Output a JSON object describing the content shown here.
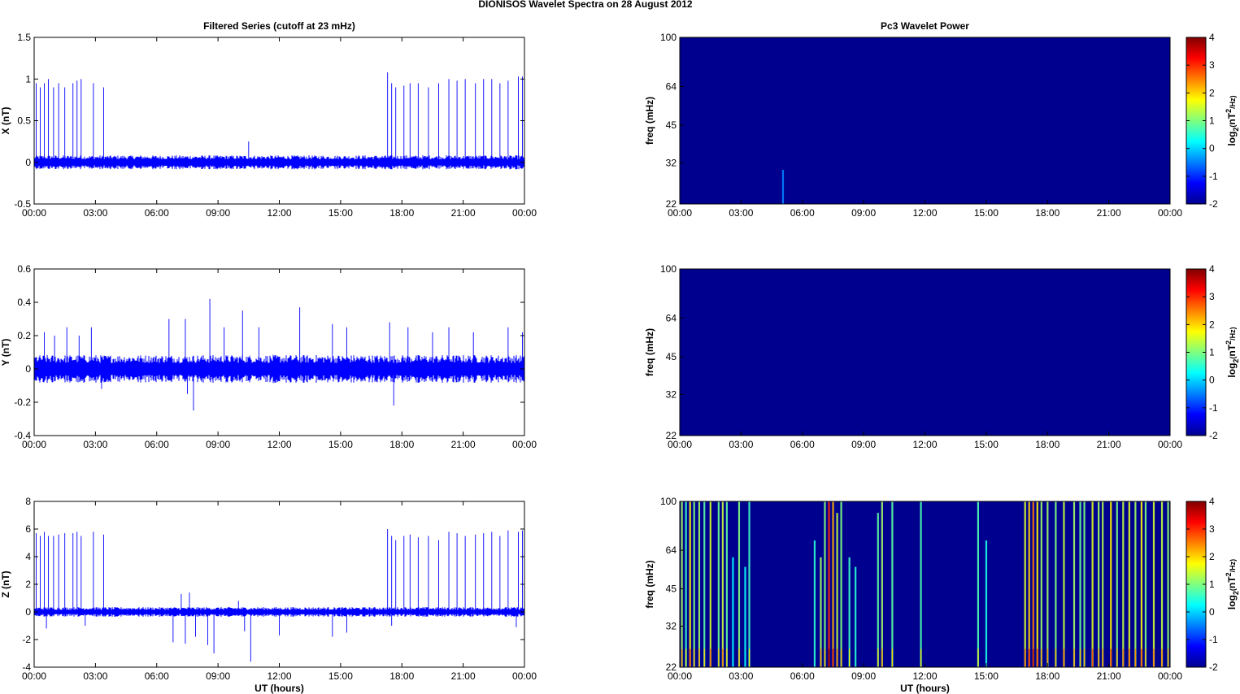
{
  "figure": {
    "title": "DIONISOS Wavelet Spectra on 28 August    2012"
  },
  "colors": {
    "trace": "#0000ff",
    "spectrogram_background": "#00008f"
  },
  "chart_data": [
    {
      "type": "line",
      "panel": "X",
      "title": "Filtered Series (cutoff at 23 mHz)",
      "ylabel": "X (nT)",
      "xlabel": "",
      "ylim": [
        -0.5,
        1.5
      ],
      "yticks": [
        -0.5,
        0,
        0.5,
        1,
        1.5
      ],
      "ytick_labels": [
        "-0.5",
        "0",
        "0.5",
        "1",
        "1.5"
      ],
      "xlim_hours": [
        0,
        24
      ],
      "xtick_labels": [
        "00:00",
        "03:00",
        "06:00",
        "09:00",
        "12:00",
        "15:00",
        "18:00",
        "21:00",
        "00:00"
      ],
      "noise_amplitude": 0.06,
      "spikes": [
        [
          0.1,
          0.95
        ],
        [
          0.3,
          0.9
        ],
        [
          0.5,
          0.95
        ],
        [
          0.7,
          1.0
        ],
        [
          0.95,
          0.9
        ],
        [
          1.2,
          0.95
        ],
        [
          1.5,
          0.9
        ],
        [
          1.9,
          0.95
        ],
        [
          2.1,
          0.98
        ],
        [
          2.3,
          1.0
        ],
        [
          2.9,
          0.95
        ],
        [
          3.4,
          0.9
        ],
        [
          10.5,
          0.25
        ],
        [
          17.3,
          1.08
        ],
        [
          17.5,
          0.95
        ],
        [
          17.7,
          0.9
        ],
        [
          18.1,
          0.92
        ],
        [
          18.4,
          0.95
        ],
        [
          18.8,
          0.95
        ],
        [
          19.3,
          0.9
        ],
        [
          19.8,
          0.95
        ],
        [
          20.3,
          1.0
        ],
        [
          20.7,
          0.98
        ],
        [
          21.1,
          1.0
        ],
        [
          21.6,
          0.95
        ],
        [
          22.0,
          1.0
        ],
        [
          22.4,
          1.0
        ],
        [
          22.8,
          0.95
        ],
        [
          23.2,
          0.98
        ],
        [
          23.7,
          1.03
        ],
        [
          23.9,
          1.03
        ]
      ]
    },
    {
      "type": "line",
      "panel": "Y",
      "title": "",
      "ylabel": "Y (nT)",
      "xlabel": "",
      "ylim": [
        -0.4,
        0.6
      ],
      "yticks": [
        -0.4,
        -0.2,
        0,
        0.2,
        0.4,
        0.6
      ],
      "ytick_labels": [
        "-0.4",
        "-0.2",
        "0",
        "0.2",
        "0.4",
        "0.6"
      ],
      "xlim_hours": [
        0,
        24
      ],
      "xtick_labels": [
        "00:00",
        "03:00",
        "06:00",
        "09:00",
        "12:00",
        "15:00",
        "18:00",
        "21:00",
        "00:00"
      ],
      "noise_amplitude": 0.06,
      "spikes": [
        [
          0.5,
          0.22
        ],
        [
          1.0,
          0.2
        ],
        [
          1.6,
          0.25
        ],
        [
          2.2,
          0.2
        ],
        [
          2.8,
          0.25
        ],
        [
          6.6,
          0.3
        ],
        [
          7.4,
          0.3
        ],
        [
          7.8,
          -0.25
        ],
        [
          8.6,
          0.42
        ],
        [
          9.3,
          0.25
        ],
        [
          10.2,
          0.35
        ],
        [
          11.0,
          0.25
        ],
        [
          13.0,
          0.37
        ],
        [
          14.6,
          0.27
        ],
        [
          15.3,
          0.25
        ],
        [
          17.4,
          0.28
        ],
        [
          17.6,
          -0.22
        ],
        [
          18.3,
          0.25
        ],
        [
          19.5,
          0.22
        ],
        [
          20.3,
          0.25
        ],
        [
          21.5,
          0.22
        ],
        [
          23.2,
          0.25
        ],
        [
          23.9,
          0.22
        ],
        [
          3.3,
          -0.12
        ],
        [
          7.5,
          -0.15
        ]
      ]
    },
    {
      "type": "line",
      "panel": "Z",
      "title": "",
      "ylabel": "Z (nT)",
      "xlabel": "UT (hours)",
      "ylim": [
        -4,
        8
      ],
      "yticks": [
        -4,
        -2,
        0,
        2,
        4,
        6,
        8
      ],
      "ytick_labels": [
        "-4",
        "-2",
        "0",
        "2",
        "4",
        "6",
        "8"
      ],
      "xlim_hours": [
        0,
        24
      ],
      "xtick_labels": [
        "00:00",
        "03:00",
        "06:00",
        "09:00",
        "12:00",
        "15:00",
        "18:00",
        "21:00",
        "00:00"
      ],
      "noise_amplitude": 0.25,
      "spikes": [
        [
          0.1,
          5.7
        ],
        [
          0.3,
          5.5
        ],
        [
          0.5,
          5.8
        ],
        [
          0.7,
          5.5
        ],
        [
          0.95,
          5.5
        ],
        [
          1.2,
          5.6
        ],
        [
          1.5,
          5.7
        ],
        [
          1.9,
          5.7
        ],
        [
          2.1,
          5.8
        ],
        [
          2.3,
          5.5
        ],
        [
          2.9,
          5.8
        ],
        [
          3.4,
          5.6
        ],
        [
          0.6,
          -1.2
        ],
        [
          2.5,
          -1.0
        ],
        [
          6.8,
          -2.2
        ],
        [
          7.2,
          1.3
        ],
        [
          7.4,
          -2.3
        ],
        [
          7.6,
          1.4
        ],
        [
          7.9,
          -1.8
        ],
        [
          8.5,
          -2.4
        ],
        [
          8.8,
          -3.0
        ],
        [
          10.0,
          0.8
        ],
        [
          10.3,
          -1.4
        ],
        [
          10.6,
          -3.6
        ],
        [
          12.0,
          -1.7
        ],
        [
          14.6,
          -1.8
        ],
        [
          15.3,
          -1.5
        ],
        [
          17.3,
          6.0
        ],
        [
          17.5,
          5.5
        ],
        [
          17.7,
          5.2
        ],
        [
          18.1,
          5.5
        ],
        [
          18.4,
          5.6
        ],
        [
          18.8,
          5.4
        ],
        [
          19.3,
          5.5
        ],
        [
          19.8,
          5.2
        ],
        [
          20.3,
          5.8
        ],
        [
          20.7,
          5.7
        ],
        [
          21.1,
          5.5
        ],
        [
          21.6,
          5.6
        ],
        [
          22.0,
          5.7
        ],
        [
          22.4,
          5.8
        ],
        [
          22.8,
          5.5
        ],
        [
          23.2,
          5.9
        ],
        [
          23.7,
          5.8
        ],
        [
          23.9,
          5.9
        ],
        [
          17.5,
          -1.0
        ],
        [
          23.6,
          -1.1
        ]
      ]
    },
    {
      "type": "heatmap",
      "panel": "X",
      "title": "Pc3 Wavelet Power",
      "ylabel": "freq (mHz)",
      "xlabel": "",
      "colorbar_label": "log2(nT2/Hz)",
      "colorbar_ticks": [
        -2,
        -1,
        0,
        1,
        2,
        3,
        4
      ],
      "clim": [
        -2,
        4
      ],
      "ytick_labels": [
        "22",
        "32",
        "45",
        "64",
        "100"
      ],
      "yticks_mhz": [
        22,
        32,
        45,
        64,
        100
      ],
      "ylim_mhz": [
        22,
        100
      ],
      "xlim_hours": [
        0,
        24
      ],
      "xtick_labels": [
        "00:00",
        "03:00",
        "06:00",
        "09:00",
        "12:00",
        "15:00",
        "18:00",
        "21:00",
        "00:00"
      ],
      "streaks": [
        [
          5.05,
          30,
          -0.5
        ]
      ]
    },
    {
      "type": "heatmap",
      "panel": "Y",
      "title": "",
      "ylabel": "freq (mHz)",
      "xlabel": "",
      "colorbar_label": "log2(nT2/Hz)",
      "colorbar_ticks": [
        -2,
        -1,
        0,
        1,
        2,
        3,
        4
      ],
      "clim": [
        -2,
        4
      ],
      "ytick_labels": [
        "22",
        "32",
        "45",
        "64",
        "100"
      ],
      "yticks_mhz": [
        22,
        32,
        45,
        64,
        100
      ],
      "ylim_mhz": [
        22,
        100
      ],
      "xlim_hours": [
        0,
        24
      ],
      "xtick_labels": [
        "00:00",
        "03:00",
        "06:00",
        "09:00",
        "12:00",
        "15:00",
        "18:00",
        "21:00",
        "00:00"
      ],
      "streaks": []
    },
    {
      "type": "heatmap",
      "panel": "Z",
      "title": "",
      "ylabel": "freq (mHz)",
      "xlabel": "UT (hours)",
      "colorbar_label": "log2(nT2/Hz)",
      "colorbar_ticks": [
        -2,
        -1,
        0,
        1,
        2,
        3,
        4
      ],
      "clim": [
        -2,
        4
      ],
      "ytick_labels": [
        "22",
        "32",
        "45",
        "64",
        "100"
      ],
      "yticks_mhz": [
        22,
        32,
        45,
        64,
        100
      ],
      "ylim_mhz": [
        22,
        100
      ],
      "xlim_hours": [
        0,
        24
      ],
      "xtick_labels": [
        "00:00",
        "03:00",
        "06:00",
        "09:00",
        "12:00",
        "15:00",
        "18:00",
        "21:00",
        "00:00"
      ],
      "streaks": [
        [
          0.1,
          100,
          1.2
        ],
        [
          0.3,
          100,
          0.6
        ],
        [
          0.5,
          100,
          1.8
        ],
        [
          0.7,
          100,
          1.0
        ],
        [
          0.95,
          100,
          1.2
        ],
        [
          1.2,
          100,
          0.8
        ],
        [
          1.5,
          100,
          1.5
        ],
        [
          1.9,
          100,
          0.9
        ],
        [
          2.1,
          100,
          1.4
        ],
        [
          2.3,
          100,
          0.8
        ],
        [
          2.6,
          60,
          0.2
        ],
        [
          2.9,
          100,
          1.0
        ],
        [
          3.2,
          55,
          0.3
        ],
        [
          3.4,
          100,
          0.6
        ],
        [
          6.6,
          70,
          0.5
        ],
        [
          6.9,
          60,
          1.2
        ],
        [
          7.1,
          100,
          1.0
        ],
        [
          7.3,
          100,
          3.0
        ],
        [
          7.5,
          100,
          2.2
        ],
        [
          7.7,
          90,
          1.4
        ],
        [
          7.9,
          100,
          1.0
        ],
        [
          8.3,
          60,
          0.6
        ],
        [
          8.6,
          55,
          0.5
        ],
        [
          9.7,
          90,
          0.8
        ],
        [
          9.9,
          100,
          1.2
        ],
        [
          10.4,
          100,
          0.8
        ],
        [
          11.8,
          100,
          0.7
        ],
        [
          14.6,
          100,
          0.7
        ],
        [
          15.0,
          70,
          0.4
        ],
        [
          16.9,
          100,
          1.5
        ],
        [
          17.1,
          100,
          2.0
        ],
        [
          17.3,
          100,
          2.5
        ],
        [
          17.5,
          100,
          1.8
        ],
        [
          17.7,
          100,
          1.2
        ],
        [
          18.0,
          100,
          1.2
        ],
        [
          18.4,
          100,
          1.0
        ],
        [
          18.8,
          100,
          1.4
        ],
        [
          19.3,
          100,
          1.2
        ],
        [
          19.6,
          100,
          0.9
        ],
        [
          19.8,
          100,
          1.0
        ],
        [
          20.2,
          100,
          1.6
        ],
        [
          20.5,
          100,
          1.2
        ],
        [
          20.7,
          100,
          1.3
        ],
        [
          21.1,
          100,
          1.8
        ],
        [
          21.4,
          100,
          1.0
        ],
        [
          21.7,
          100,
          1.4
        ],
        [
          22.0,
          100,
          1.6
        ],
        [
          22.3,
          100,
          1.2
        ],
        [
          22.6,
          100,
          1.8
        ],
        [
          22.8,
          100,
          1.0
        ],
        [
          23.2,
          100,
          1.5
        ],
        [
          23.6,
          100,
          1.4
        ],
        [
          23.9,
          100,
          1.1
        ]
      ]
    }
  ]
}
